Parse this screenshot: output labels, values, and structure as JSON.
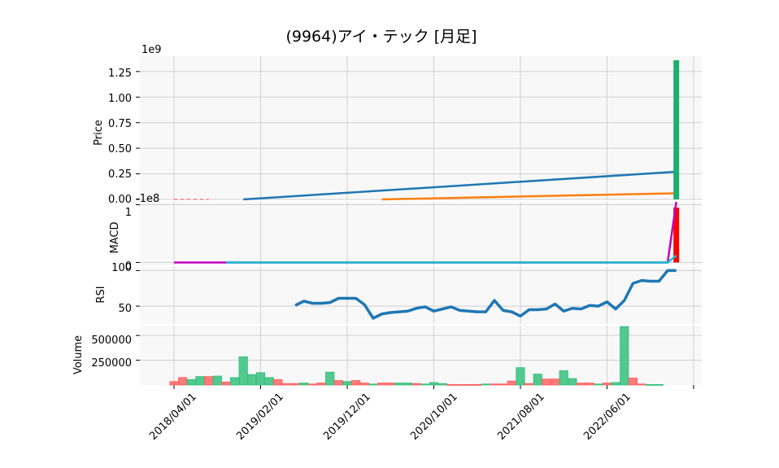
{
  "chart_data": [
    {
      "title": "(9964)アイ・テック [月足]",
      "type": "line",
      "panel": "price",
      "ylabel": "Price",
      "offset_label": "1e9",
      "ylim": [
        0,
        1.4
      ],
      "y_ticks": [
        "0.00",
        "0.25",
        "0.50",
        "0.75",
        "1.00",
        "1.25"
      ],
      "grid": true,
      "series": [
        {
          "color": "#1f77b4",
          "x": [
            8,
            58
          ],
          "y": [
            0.0,
            0.27
          ]
        },
        {
          "color": "#ff7f0e",
          "x": [
            24,
            58
          ],
          "y": [
            0.0,
            0.06
          ]
        }
      ],
      "candles": [
        {
          "x": 58,
          "open": 0.0,
          "close": 1.36,
          "up": true
        }
      ]
    },
    {
      "type": "line",
      "panel": "macd",
      "ylabel": "MACD",
      "offset_label": "-1e8",
      "y_ticks": [
        "0",
        "1"
      ],
      "ylim": [
        -0.05,
        1.05
      ],
      "grid": true,
      "series": [
        {
          "color": "#bf00bf",
          "x": [
            0,
            6,
            57,
            58
          ],
          "y": [
            0.0,
            0.0,
            0.0,
            1.05
          ]
        },
        {
          "color": "#17becf",
          "x": [
            6,
            57,
            58
          ],
          "y": [
            0.0,
            0.0,
            0.12
          ]
        }
      ],
      "histogram": [
        {
          "x": 58,
          "value": 0.95,
          "color": "#ff0000"
        }
      ]
    },
    {
      "type": "line",
      "panel": "rsi",
      "ylabel": "RSI",
      "y_ticks": [
        "50",
        "100"
      ],
      "ylim": [
        25,
        105
      ],
      "grid": true,
      "series": [
        {
          "color": "#1f77b4",
          "x": [
            14,
            15,
            16,
            17,
            18,
            19,
            20,
            21,
            22,
            23,
            24,
            25,
            26,
            27,
            28,
            29,
            30,
            31,
            32,
            33,
            34,
            35,
            36,
            37,
            38,
            39,
            40,
            41,
            42,
            43,
            44,
            45,
            46,
            47,
            48,
            49,
            50,
            51,
            52,
            53,
            54,
            55,
            56,
            57,
            58
          ],
          "y": [
            51,
            57,
            54,
            54,
            55,
            61,
            61,
            61,
            52,
            33,
            39,
            41,
            42,
            43,
            47,
            49,
            43,
            46,
            49,
            44,
            43,
            42,
            42,
            58,
            44,
            42,
            36,
            45,
            45,
            46,
            53,
            43,
            47,
            46,
            51,
            50,
            56,
            46,
            58,
            82,
            86,
            85,
            85,
            100,
            100
          ]
        }
      ]
    },
    {
      "type": "bar",
      "panel": "volume",
      "ylabel": "Volume",
      "y_ticks": [
        "250000",
        "500000"
      ],
      "ylim": [
        0,
        600000
      ],
      "grid": true,
      "x_tick_labels": [
        "2018/04/01",
        "2019/02/01",
        "2019/12/01",
        "2020/10/01",
        "2021/08/01",
        "2022/06/01"
      ],
      "x_tick_index": [
        0,
        10,
        20,
        30,
        40,
        50,
        60
      ],
      "bars": [
        {
          "x": 0,
          "v": 35000,
          "c": "#ff5a5a"
        },
        {
          "x": 1,
          "v": 75000,
          "c": "#ff5a5a"
        },
        {
          "x": 2,
          "v": 55000,
          "c": "#2ebf7a"
        },
        {
          "x": 3,
          "v": 85000,
          "c": "#2ebf7a"
        },
        {
          "x": 4,
          "v": 85000,
          "c": "#ff5a5a"
        },
        {
          "x": 5,
          "v": 90000,
          "c": "#2ebf7a"
        },
        {
          "x": 6,
          "v": 30000,
          "c": "#ff5a5a"
        },
        {
          "x": 7,
          "v": 75000,
          "c": "#2ebf7a"
        },
        {
          "x": 8,
          "v": 285000,
          "c": "#2ebf7a"
        },
        {
          "x": 9,
          "v": 105000,
          "c": "#2ebf7a"
        },
        {
          "x": 10,
          "v": 125000,
          "c": "#2ebf7a"
        },
        {
          "x": 11,
          "v": 75000,
          "c": "#2ebf7a"
        },
        {
          "x": 12,
          "v": 55000,
          "c": "#ff5a5a"
        },
        {
          "x": 13,
          "v": 15000,
          "c": "#ff5a5a"
        },
        {
          "x": 14,
          "v": 15000,
          "c": "#ff5a5a"
        },
        {
          "x": 15,
          "v": 20000,
          "c": "#2ebf7a"
        },
        {
          "x": 16,
          "v": 10000,
          "c": "#ff5a5a"
        },
        {
          "x": 17,
          "v": 20000,
          "c": "#ff5a5a"
        },
        {
          "x": 18,
          "v": 130000,
          "c": "#2ebf7a"
        },
        {
          "x": 19,
          "v": 45000,
          "c": "#ff5a5a"
        },
        {
          "x": 20,
          "v": 35000,
          "c": "#2ebf7a"
        },
        {
          "x": 21,
          "v": 45000,
          "c": "#ff5a5a"
        },
        {
          "x": 22,
          "v": 20000,
          "c": "#ff5a5a"
        },
        {
          "x": 23,
          "v": 10000,
          "c": "#2ebf7a"
        },
        {
          "x": 24,
          "v": 20000,
          "c": "#ff5a5a"
        },
        {
          "x": 25,
          "v": 20000,
          "c": "#ff5a5a"
        },
        {
          "x": 26,
          "v": 20000,
          "c": "#2ebf7a"
        },
        {
          "x": 27,
          "v": 20000,
          "c": "#2ebf7a"
        },
        {
          "x": 28,
          "v": 15000,
          "c": "#ff5a5a"
        },
        {
          "x": 29,
          "v": 10000,
          "c": "#2ebf7a"
        },
        {
          "x": 30,
          "v": 25000,
          "c": "#2ebf7a"
        },
        {
          "x": 31,
          "v": 15000,
          "c": "#2ebf7a"
        },
        {
          "x": 32,
          "v": 5000,
          "c": "#ff5a5a"
        },
        {
          "x": 33,
          "v": 5000,
          "c": "#ff5a5a"
        },
        {
          "x": 34,
          "v": 5000,
          "c": "#ff5a5a"
        },
        {
          "x": 35,
          "v": 5000,
          "c": "#ff5a5a"
        },
        {
          "x": 36,
          "v": 10000,
          "c": "#2ebf7a"
        },
        {
          "x": 37,
          "v": 10000,
          "c": "#ff5a5a"
        },
        {
          "x": 38,
          "v": 10000,
          "c": "#ff5a5a"
        },
        {
          "x": 39,
          "v": 40000,
          "c": "#ff5a5a"
        },
        {
          "x": 40,
          "v": 175000,
          "c": "#2ebf7a"
        },
        {
          "x": 41,
          "v": 15000,
          "c": "#ff5a5a"
        },
        {
          "x": 42,
          "v": 110000,
          "c": "#2ebf7a"
        },
        {
          "x": 43,
          "v": 60000,
          "c": "#ff5a5a"
        },
        {
          "x": 44,
          "v": 60000,
          "c": "#ff5a5a"
        },
        {
          "x": 45,
          "v": 145000,
          "c": "#2ebf7a"
        },
        {
          "x": 46,
          "v": 65000,
          "c": "#2ebf7a"
        },
        {
          "x": 47,
          "v": 20000,
          "c": "#ff5a5a"
        },
        {
          "x": 48,
          "v": 20000,
          "c": "#ff5a5a"
        },
        {
          "x": 49,
          "v": 10000,
          "c": "#2ebf7a"
        },
        {
          "x": 50,
          "v": 20000,
          "c": "#ff5a5a"
        },
        {
          "x": 51,
          "v": 25000,
          "c": "#2ebf7a"
        },
        {
          "x": 52,
          "v": 590000,
          "c": "#2ebf7a"
        },
        {
          "x": 53,
          "v": 70000,
          "c": "#ff5a5a"
        },
        {
          "x": 54,
          "v": 10000,
          "c": "#ff5a5a"
        },
        {
          "x": 55,
          "v": 5000,
          "c": "#2ebf7a"
        },
        {
          "x": 56,
          "v": 5000,
          "c": "#2ebf7a"
        }
      ]
    }
  ]
}
